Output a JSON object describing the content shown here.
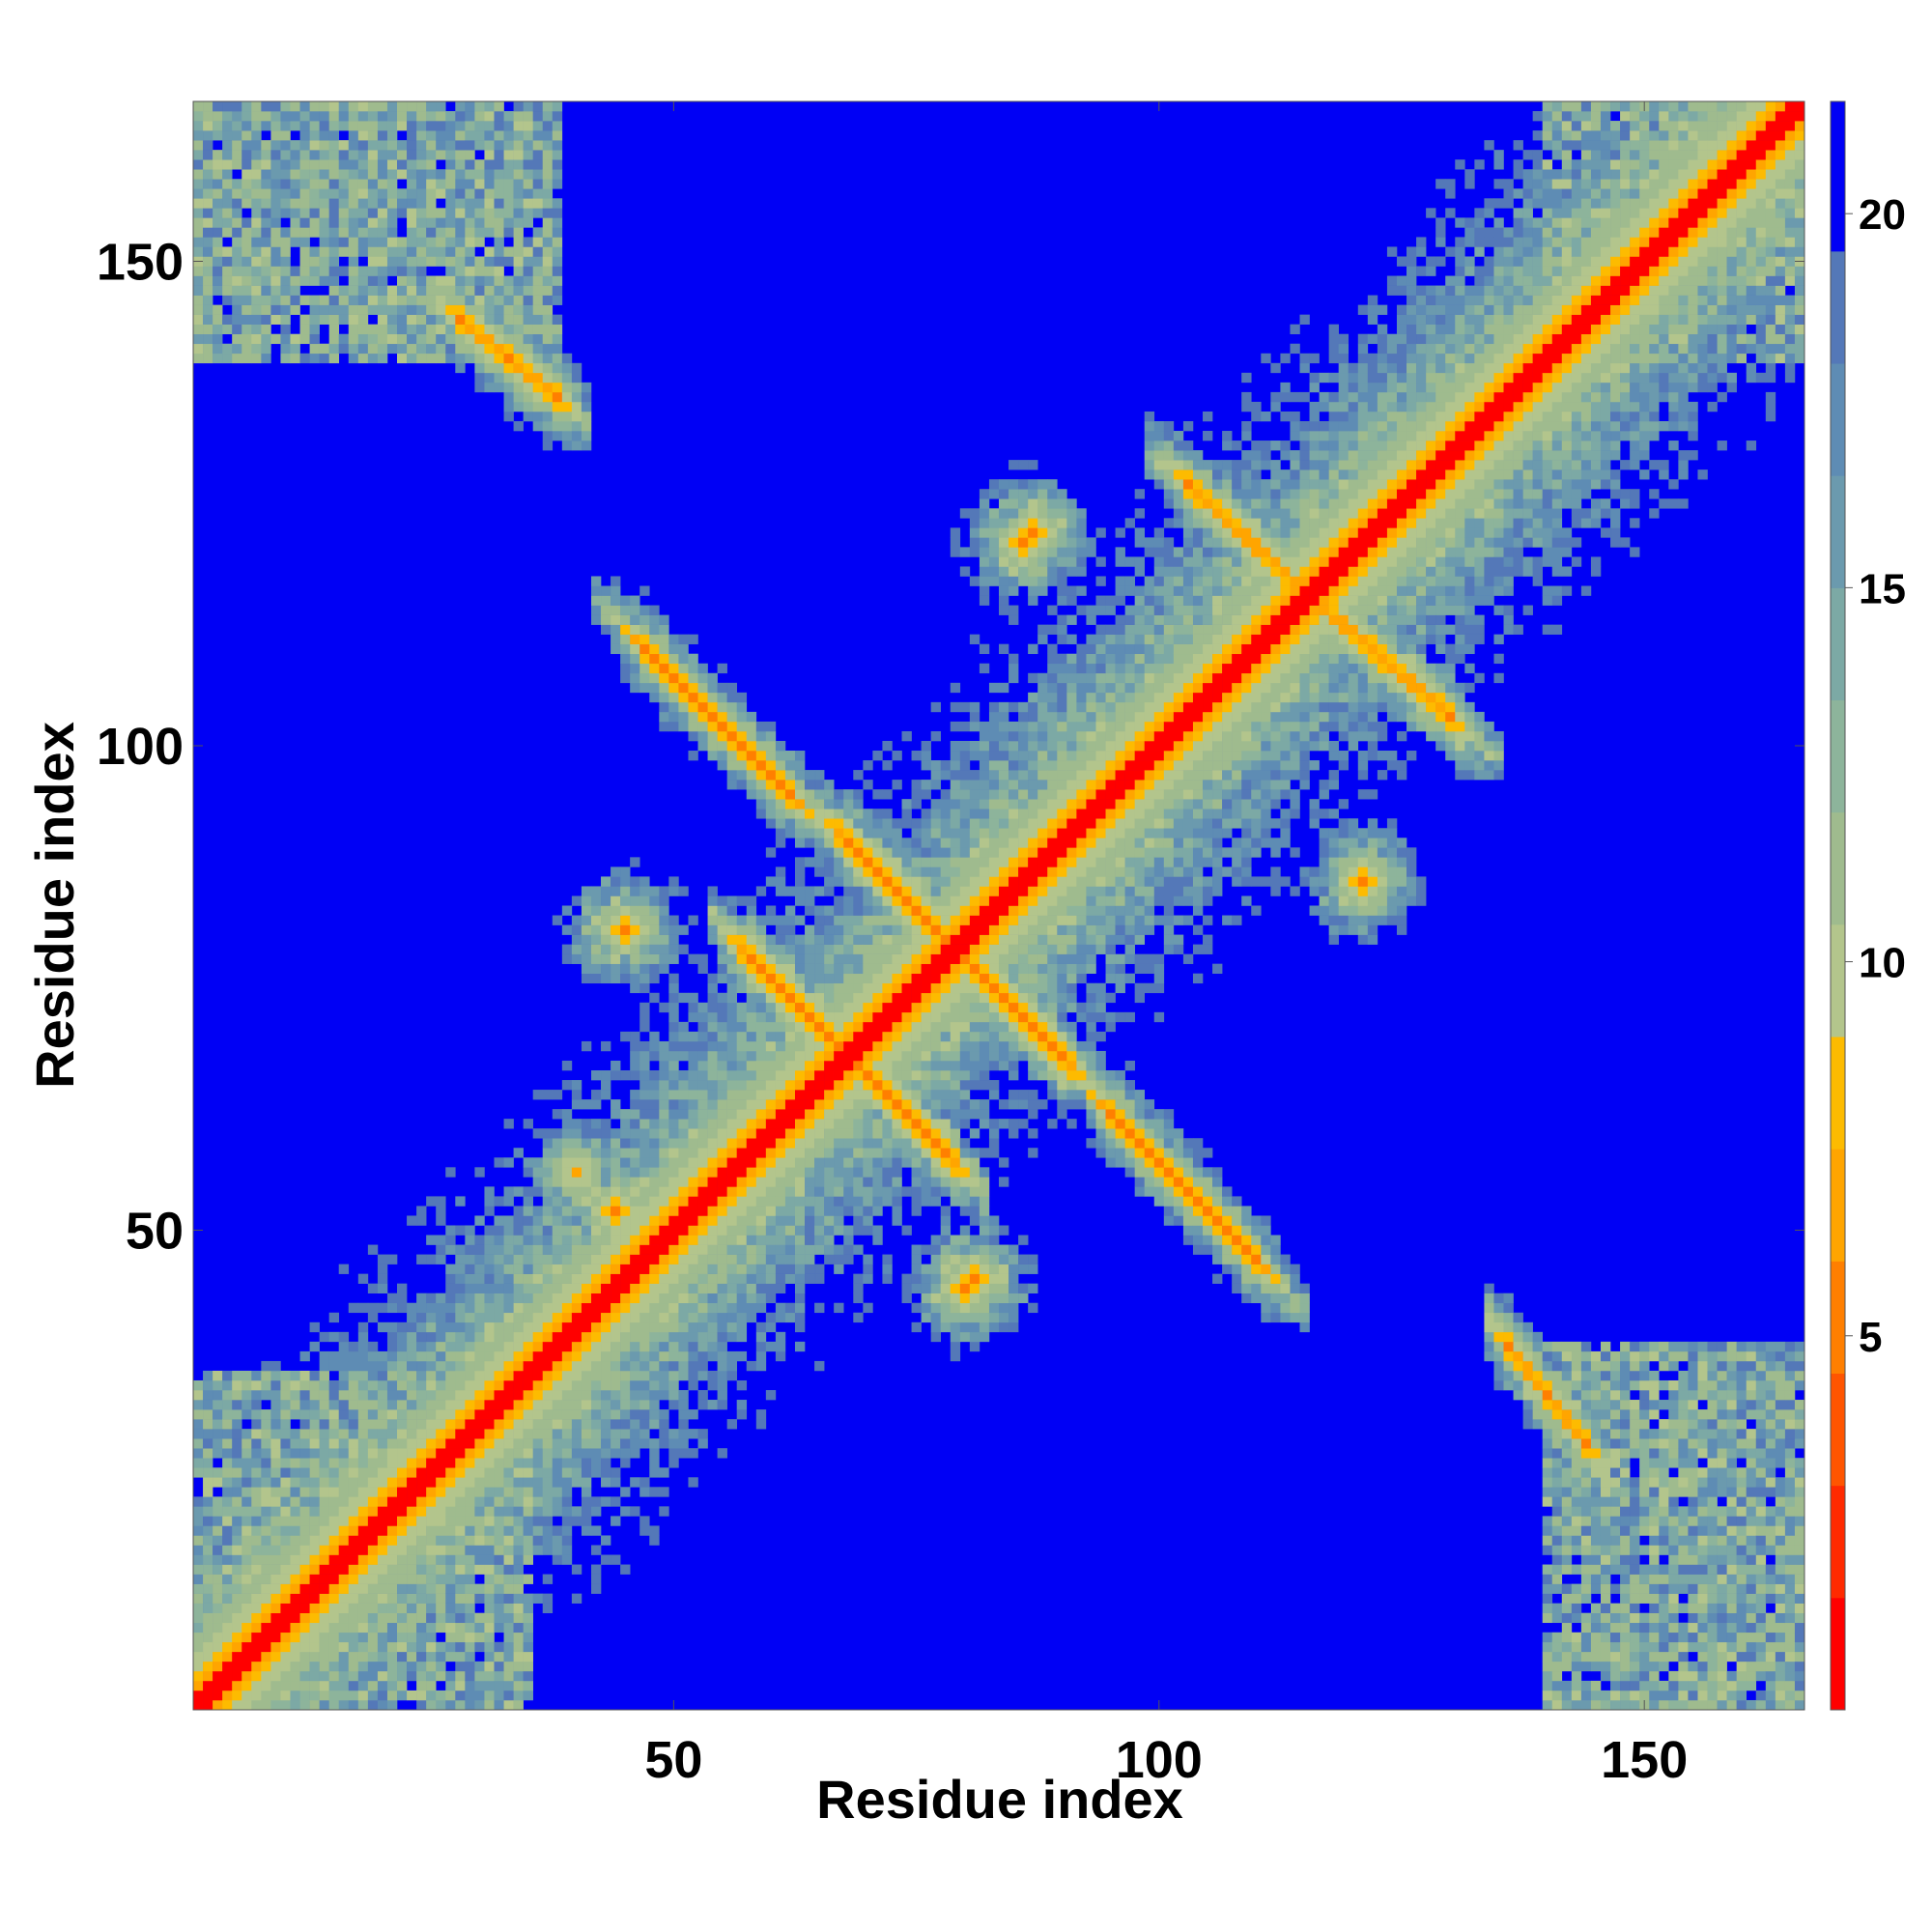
{
  "chart_data": {
    "type": "heatmap",
    "title": "",
    "xlabel": "Residue index",
    "ylabel": "Residue index",
    "xlim": [
      1,
      166
    ],
    "ylim": [
      1,
      166
    ],
    "x_ticks": [
      50,
      100,
      150
    ],
    "y_ticks": [
      50,
      100,
      150
    ],
    "x_tick_labels": [
      "50",
      "100",
      "150"
    ],
    "y_tick_labels": [
      "50",
      "100",
      "150"
    ],
    "grid": false,
    "symmetric": true,
    "n_residues": 166,
    "colorbar": {
      "ticks": [
        5,
        10,
        15,
        20
      ],
      "tick_labels": [
        "5",
        "10",
        "15",
        "20"
      ],
      "range": [
        0,
        21.5
      ],
      "levels": [
        {
          "upto": 1.5,
          "color": "#ff0000"
        },
        {
          "upto": 3,
          "color": "#ff2a00"
        },
        {
          "upto": 4.5,
          "color": "#ff5500"
        },
        {
          "upto": 6,
          "color": "#ff7f00"
        },
        {
          "upto": 7.5,
          "color": "#ffa500"
        },
        {
          "upto": 9,
          "color": "#fdbb00"
        },
        {
          "upto": 10.5,
          "color": "#b3c58c"
        },
        {
          "upto": 12,
          "color": "#9fbb8e"
        },
        {
          "upto": 13.5,
          "color": "#8db49b"
        },
        {
          "upto": 15,
          "color": "#7ca9a5"
        },
        {
          "upto": 16.5,
          "color": "#6b9aae"
        },
        {
          "upto": 18,
          "color": "#5e8cb4"
        },
        {
          "upto": 19.5,
          "color": "#5478b8"
        },
        {
          "upto": 21.5,
          "color": "#0000f5"
        }
      ]
    },
    "cutoff": 20,
    "contact_bands": [
      {
        "kind": "diagonal",
        "from": 1,
        "to": 166
      },
      {
        "kind": "block",
        "x": [
          1,
          35
        ],
        "y": [
          1,
          35
        ]
      },
      {
        "kind": "block",
        "x": [
          1,
          38
        ],
        "y": [
          140,
          166
        ]
      },
      {
        "kind": "block",
        "x": [
          140,
          166
        ],
        "y": [
          1,
          38
        ]
      },
      {
        "kind": "block",
        "x": [
          140,
          166
        ],
        "y": [
          140,
          166
        ]
      },
      {
        "kind": "anti",
        "x": [
          47,
          62
        ],
        "y": [
          110,
          95
        ],
        "strength": 6
      },
      {
        "kind": "anti",
        "x": [
          95,
          110
        ],
        "y": [
          62,
          47
        ],
        "strength": 6
      },
      {
        "kind": "anti",
        "x": [
          68,
          80
        ],
        "y": [
          90,
          78
        ],
        "strength": 5
      },
      {
        "kind": "anti",
        "x": [
          78,
          90
        ],
        "y": [
          80,
          68
        ],
        "strength": 5
      },
      {
        "kind": "anti",
        "x": [
          58,
          70
        ],
        "y": [
          78,
          66
        ],
        "strength": 5
      },
      {
        "kind": "anti",
        "x": [
          66,
          78
        ],
        "y": [
          70,
          58
        ],
        "strength": 5
      },
      {
        "kind": "anti",
        "x": [
          103,
          116
        ],
        "y": [
          127,
          115
        ],
        "strength": 6
      },
      {
        "kind": "anti",
        "x": [
          115,
          130
        ],
        "y": [
          116,
          103
        ],
        "strength": 6
      },
      {
        "kind": "anti",
        "x": [
          28,
          38
        ],
        "y": [
          144,
          136
        ],
        "strength": 6
      },
      {
        "kind": "anti",
        "x": [
          136,
          144
        ],
        "y": [
          38,
          28
        ],
        "strength": 6
      },
      {
        "kind": "spot",
        "x": 45,
        "y": 81,
        "strength": 6
      },
      {
        "kind": "spot",
        "x": 81,
        "y": 45,
        "strength": 6
      },
      {
        "kind": "spot",
        "x": 80,
        "y": 44,
        "strength": 6
      },
      {
        "kind": "spot",
        "x": 121,
        "y": 86,
        "strength": 6
      },
      {
        "kind": "spot",
        "x": 86,
        "y": 121,
        "strength": 6
      },
      {
        "kind": "spot",
        "x": 87,
        "y": 122,
        "strength": 6
      },
      {
        "kind": "spot",
        "x": 44,
        "y": 52,
        "strength": 6
      },
      {
        "kind": "spot",
        "x": 40,
        "y": 56,
        "strength": 7
      }
    ]
  }
}
